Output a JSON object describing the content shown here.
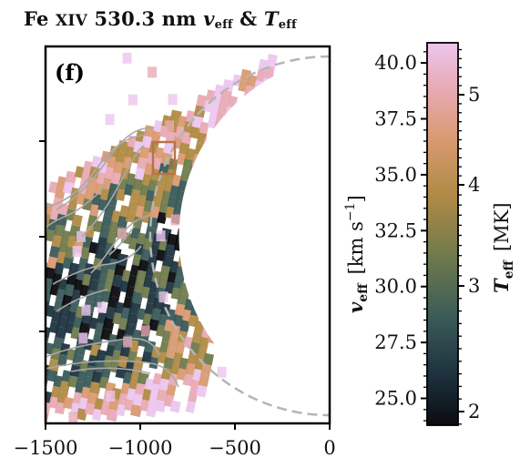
{
  "title": {
    "prefix": "Fe",
    "ion": "XIV",
    "wavelength": "530.3 nm",
    "v_sym": "v",
    "v_sub": "eff",
    "amp": "&",
    "t_sym": "T",
    "t_sub": "eff"
  },
  "panel_label": "(f)",
  "chart_data": {
    "type": "heatmap",
    "title": "Fe XIV 530.3 nm v_eff & T_eff",
    "x_axis": {
      "range": [
        -1500,
        0
      ],
      "ticks": [
        -1500,
        -1000,
        -500,
        0
      ],
      "tick_labels": [
        "−1500",
        "−1000",
        "−500",
        "0"
      ]
    },
    "y_axis": {
      "tick_labels": []
    },
    "colorbar": {
      "left_label": "v_eff [km s^-1]",
      "left_label_parts": {
        "sym": "v",
        "sub": "eff",
        "unit": "[km s",
        "exp": "−1",
        "close": "]"
      },
      "left_range": [
        23.8,
        40.9
      ],
      "left_ticks": [
        25.0,
        27.5,
        30.0,
        32.5,
        35.0,
        37.5,
        40.0
      ],
      "left_tick_labels": [
        "25.0",
        "27.5",
        "30.0",
        "32.5",
        "35.0",
        "37.5",
        "40.0"
      ],
      "right_label": "T_eff [MK]",
      "right_label_parts": {
        "sym": "T",
        "sub": "eff",
        "unit": "[MK]"
      },
      "right_ticks": [
        2,
        3,
        4,
        5
      ],
      "right_tick_labels": [
        "2",
        "3",
        "4",
        "5"
      ],
      "colormap": [
        "#0b0b10",
        "#1f3440",
        "#3a5a58",
        "#6f7a4c",
        "#b08a45",
        "#d99a72",
        "#e8aab4",
        "#ecc6ee"
      ]
    },
    "limb": {
      "style": "dashed",
      "color": "#b5b5b5"
    },
    "highlight_box": {
      "color": "#b8744a"
    },
    "contour_color": "#a9a9a9"
  }
}
